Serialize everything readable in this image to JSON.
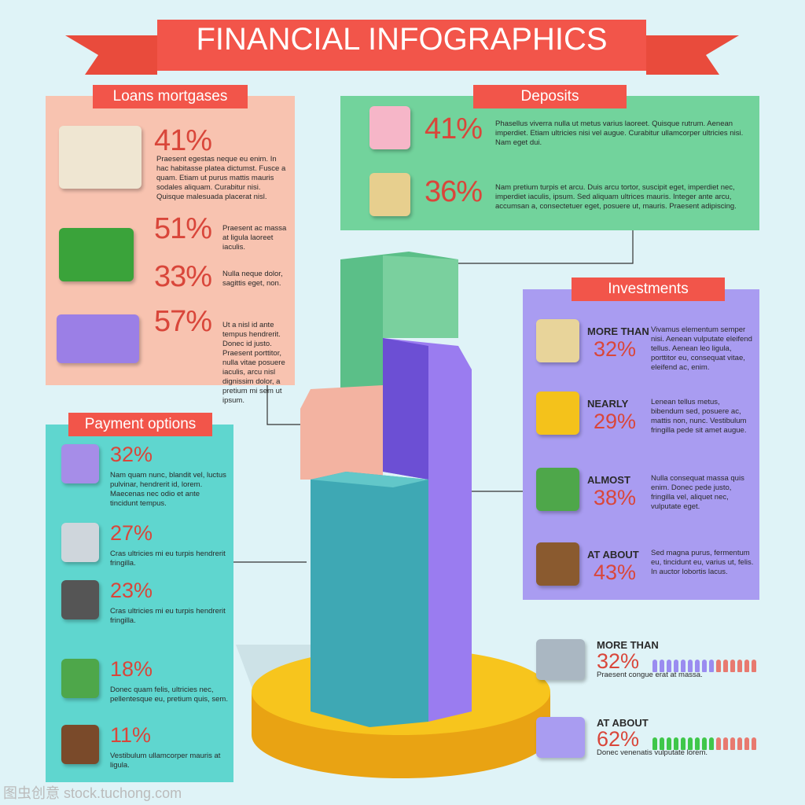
{
  "header": {
    "title": "FINANCIAL INFOGRAPHICS"
  },
  "loans": {
    "title": "Loans mortgases",
    "items": [
      {
        "percent": "41%",
        "text": "Praesent egestas neque eu enim. In hac habitasse platea dictumst. Fusce a quam. Etiam ut purus mattis mauris sodales aliquam. Curabitur nisi. Quisque malesuada placerat nisl."
      },
      {
        "percent": "51%",
        "text": "Praesent ac massa at ligula laoreet iaculis."
      },
      {
        "percent": "33%",
        "text": "Nulla neque dolor, sagittis eget, non."
      },
      {
        "percent": "57%",
        "text": "Ut a nisl id ante tempus hendrerit. Donec id justo. Praesent porttitor, nulla vitae posuere iaculis, arcu nisl dignissim dolor, a pretium mi sem ut ipsum."
      }
    ]
  },
  "deposits": {
    "title": "Deposits",
    "items": [
      {
        "percent": "41%",
        "text": "Phasellus viverra nulla ut metus varius laoreet. Quisque rutrum. Aenean imperdiet. Etiam ultricies nisi vel augue. Curabitur ullamcorper ultricies nisi. Nam eget dui."
      },
      {
        "percent": "36%",
        "text": "Nam pretium turpis et arcu. Duis arcu tortor, suscipit eget, imperdiet nec, imperdiet iaculis, ipsum. Sed aliquam ultrices mauris. Integer ante arcu, accumsan a, consectetuer eget, posuere ut, mauris. Praesent adipiscing."
      }
    ]
  },
  "investments": {
    "title": "Investments",
    "items": [
      {
        "label": "MORE THAN",
        "percent": "32%",
        "text": "Vivamus elementum semper nisi. Aenean vulputate eleifend tellus. Aenean leo ligula, porttitor eu, consequat vitae, eleifend ac, enim."
      },
      {
        "label": "NEARLY",
        "percent": "29%",
        "text": "Lenean tellus metus, bibendum sed, posuere ac, mattis non, nunc. Vestibulum fringilla pede sit amet augue."
      },
      {
        "label": "ALMOST",
        "percent": "38%",
        "text": "Nulla consequat massa quis enim. Donec pede justo, fringilla vel, aliquet nec, vulputate eget."
      },
      {
        "label": "AT ABOUT",
        "percent": "43%",
        "text": "Sed magna purus, fermentum eu, tincidunt eu, varius ut, felis. In auctor lobortis lacus."
      }
    ]
  },
  "payment": {
    "title": "Payment options",
    "items": [
      {
        "percent": "32%",
        "text": "Nam quam nunc, blandit vel, luctus pulvinar, hendrerit id, lorem. Maecenas nec odio et ante tincidunt tempus."
      },
      {
        "percent": "27%",
        "text": "Cras ultricies mi eu turpis hendrerit fringilla."
      },
      {
        "percent": "23%",
        "text": "Cras ultricies mi eu turpis hendrerit fringilla."
      },
      {
        "percent": "18%",
        "text": "Donec quam felis, ultricies nec, pellentesque eu, pretium quis, sem."
      },
      {
        "percent": "11%",
        "text": "Vestibulum ullamcorper mauris at ligula."
      }
    ]
  },
  "stats": {
    "items": [
      {
        "label": "MORE THAN",
        "percent": "32%",
        "text": "Praesent congue erat at massa."
      },
      {
        "label": "AT ABOUT",
        "percent": "62%",
        "text": "Donec venenatis vulputate lorem."
      }
    ]
  },
  "watermark": "图虫创意 stock.tuchong.com"
}
